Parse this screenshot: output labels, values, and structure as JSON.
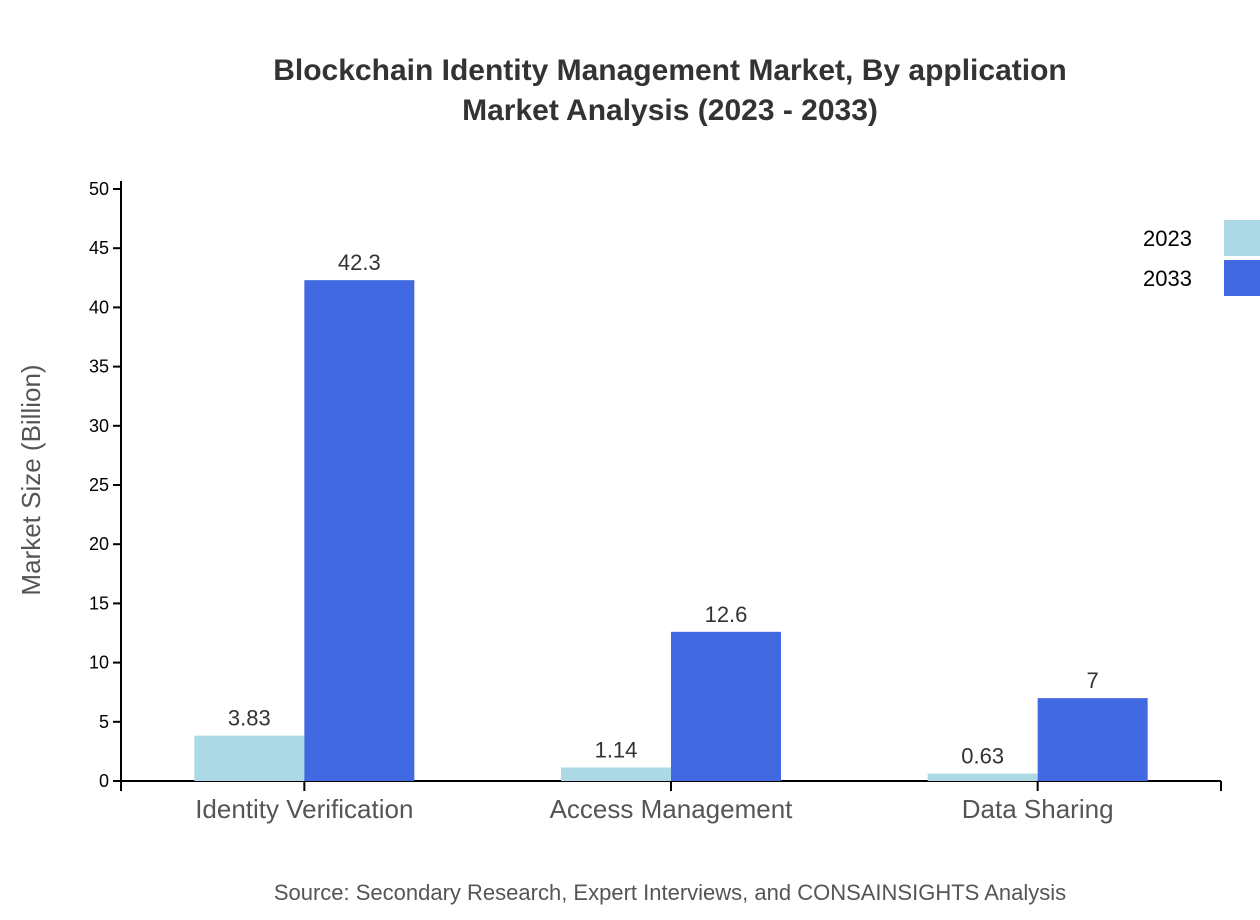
{
  "chart_data": {
    "type": "bar",
    "title": "Blockchain Identity Management Market, By application",
    "subtitle": "Market Analysis (2023 - 2033)",
    "xlabel": "",
    "ylabel": "Market Size (Billion)",
    "ylim": [
      0,
      50
    ],
    "yticks": [
      0,
      5,
      10,
      15,
      20,
      25,
      30,
      35,
      40,
      45,
      50
    ],
    "categories": [
      "Identity Verification",
      "Access Management",
      "Data Sharing"
    ],
    "series": [
      {
        "name": "2023",
        "color": "#add8e6",
        "values": [
          3.83,
          1.14,
          0.63
        ]
      },
      {
        "name": "2033",
        "color": "#4169e1",
        "values": [
          42.3,
          12.6,
          7
        ]
      }
    ],
    "grid": false,
    "legend_position": "top-right",
    "source": "Source: Secondary Research, Expert Interviews, and CONSAINSIGHTS Analysis"
  }
}
